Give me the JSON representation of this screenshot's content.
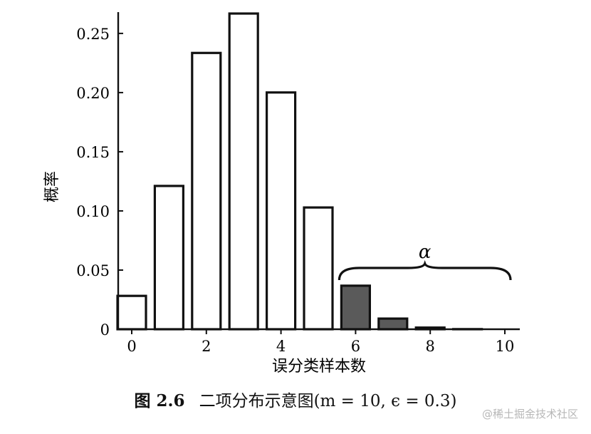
{
  "chart_data": {
    "type": "bar",
    "categories": [
      0,
      1,
      2,
      3,
      4,
      5,
      6,
      7,
      8,
      9,
      10
    ],
    "values": [
      0.0282,
      0.1211,
      0.2335,
      0.2668,
      0.2001,
      0.1029,
      0.0368,
      0.009,
      0.0014,
      0.0001,
      0.0
    ],
    "ylabel": "概率",
    "xlabel": "误分类样本数",
    "xticks": [
      "0",
      "2",
      "4",
      "6",
      "8",
      "10"
    ],
    "yticks": [
      "0",
      "0.05",
      "0.10",
      "0.15",
      "0.20",
      "0.25"
    ],
    "ylim": [
      0,
      0.268
    ],
    "highlight_from": 6,
    "annotation": "α",
    "colors": {
      "normal": "#ffffff",
      "highlight": "#5a5a5a",
      "edge": "#111111"
    }
  },
  "caption": {
    "label": "图 2.6",
    "text": "二项分布示意图(m = 10, ϵ = 0.3)"
  },
  "watermark": "@稀土掘金技术社区"
}
